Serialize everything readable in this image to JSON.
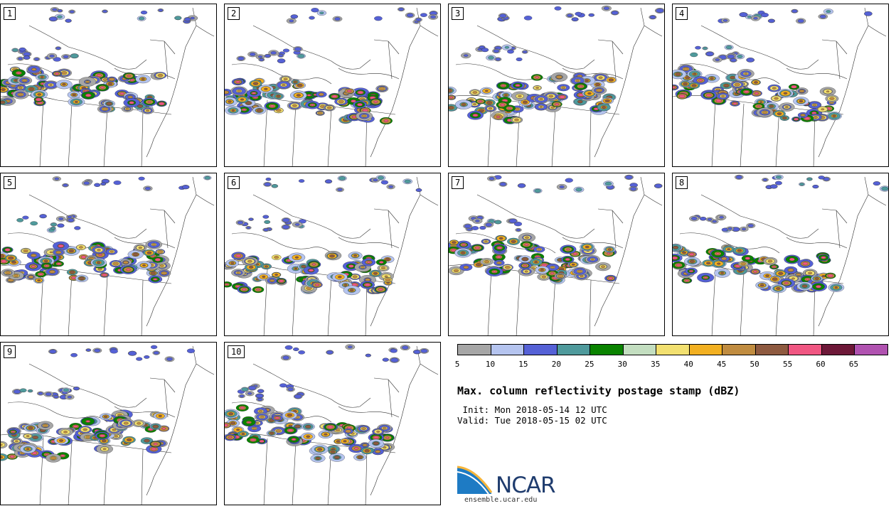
{
  "panels": [
    {
      "label": "1"
    },
    {
      "label": "2"
    },
    {
      "label": "3"
    },
    {
      "label": "4"
    },
    {
      "label": "5"
    },
    {
      "label": "6"
    },
    {
      "label": "7"
    },
    {
      "label": "8"
    },
    {
      "label": "9"
    },
    {
      "label": "10"
    }
  ],
  "colorbar": {
    "colors": [
      "#a6a6a6",
      "#b5c4ef",
      "#5561d6",
      "#4f9a9c",
      "#0a8300",
      "#c3dec0",
      "#f2e070",
      "#f2b021",
      "#c08c40",
      "#8e5a40",
      "#f05682",
      "#6d1838",
      "#b052b0"
    ],
    "ticks": [
      "5",
      "10",
      "15",
      "20",
      "25",
      "30",
      "35",
      "40",
      "45",
      "50",
      "55",
      "60",
      "65"
    ]
  },
  "title": "Max. column reflectivity postage stamp (dBZ)",
  "init": " Init: Mon 2018-05-14 12 UTC",
  "valid": "Valid: Tue 2018-05-15 02 UTC",
  "logo": {
    "text": "NCAR",
    "url": "ensemble.ucar.edu"
  }
}
